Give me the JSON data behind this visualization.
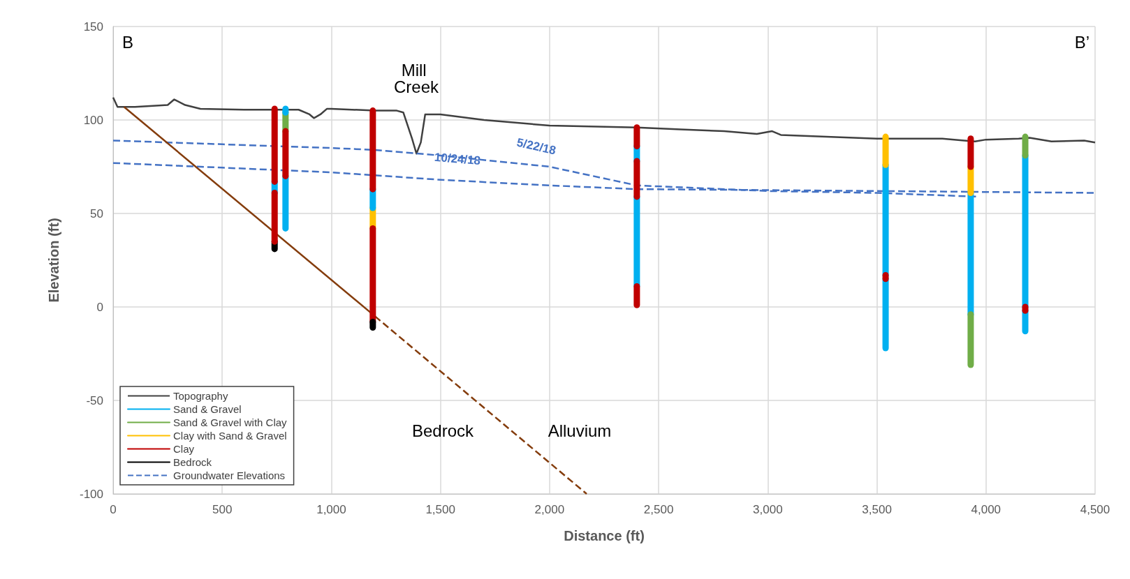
{
  "chart_data": {
    "type": "line",
    "xlabel": "Distance (ft)",
    "ylabel": "Elevation (ft)",
    "xlim": [
      0,
      4500
    ],
    "xticks": [
      0,
      500,
      {
        "value": 1000,
        "label": "1,000"
      },
      {
        "value": 1500,
        "label": "1,500"
      },
      {
        "value": 2000,
        "label": "2,000"
      },
      {
        "value": 2500,
        "label": "2,500"
      },
      {
        "value": 3000,
        "label": "3,000"
      },
      {
        "value": 3500,
        "label": "3,500"
      },
      {
        "value": 4000,
        "label": "4,000"
      },
      {
        "value": 4500,
        "label": "4,500"
      }
    ],
    "ylim": [
      -100,
      150
    ],
    "yticks": [
      -100,
      -50,
      0,
      50,
      100,
      150
    ],
    "grid": true,
    "legend": "bottom left",
    "marker": "none",
    "annotations": [
      "B",
      "B’",
      "Mill Creek",
      "5/22/18",
      "10/24/18",
      "Bedrock",
      "Alluvium"
    ],
    "series": [
      {
        "name": "Topography",
        "color": "#404040",
        "line_style": "solid",
        "x": [
          0,
          20,
          100,
          250,
          280,
          330,
          400,
          600,
          850,
          900,
          920,
          950,
          980,
          1000,
          1200,
          1300,
          1330,
          1370,
          1390,
          1410,
          1430,
          1500,
          1700,
          2000,
          2400,
          2600,
          2800,
          2950,
          3020,
          3060,
          3500,
          3800,
          3900,
          3950,
          4000,
          4150,
          4200,
          4300,
          4450,
          4500
        ],
        "values": [
          112,
          107,
          107,
          108,
          111,
          108,
          106,
          105.5,
          105.5,
          103,
          101,
          103,
          106,
          106,
          105,
          105,
          104,
          90,
          82,
          88,
          103,
          103,
          100,
          97,
          96,
          95,
          94,
          92.5,
          94,
          92,
          90,
          90,
          89,
          88.5,
          89.5,
          90,
          90.5,
          88.5,
          89,
          88
        ]
      },
      {
        "name": "Sand & Gravel",
        "color": "#00b0f0",
        "line_style": "solid",
        "x": [
          740,
          740
        ],
        "values": [
          67,
          61
        ]
      },
      {
        "name": "Sand & Gravel with Clay",
        "color": "#70ad47",
        "line_style": "solid",
        "x": [
          790,
          790
        ],
        "values": [
          104,
          94
        ]
      },
      {
        "name": "Clay with Sand & Gravel",
        "color": "#ffc000",
        "line_style": "solid",
        "x": [
          1190,
          1190
        ],
        "values": [
          53,
          42
        ]
      },
      {
        "name": "Clay",
        "color": "#c00000",
        "line_style": "solid",
        "x": [
          740,
          740
        ],
        "values": [
          106,
          67
        ]
      },
      {
        "name": "Bedrock",
        "color": "#000000",
        "line_style": "solid",
        "x": [
          740,
          740
        ],
        "values": [
          35,
          31
        ]
      },
      {
        "name": "Groundwater Elevations",
        "color": "#4472c4",
        "line_style": "dashed",
        "x": [
          0,
          500,
          1000,
          1200,
          1500,
          2000,
          2200,
          2400,
          3000,
          3500,
          3960
        ],
        "values": [
          89,
          87,
          85,
          84,
          81,
          75,
          70,
          65,
          62,
          61,
          59
        ]
      },
      {
        "color": "#4472c4",
        "line_style": "dashed",
        "x": [
          0,
          500,
          1000,
          1500,
          2000,
          2400,
          3000,
          3500,
          4000,
          4500
        ],
        "values": [
          77,
          74.5,
          72,
          68,
          65,
          63,
          62.5,
          62,
          61.5,
          61
        ]
      },
      {
        "color": "#843c0c",
        "line_style": "solid",
        "x": [
          50,
          1200
        ],
        "values": [
          107,
          -5
        ]
      },
      {
        "color": "#843c0c",
        "line_style": "dashed",
        "x": [
          1200,
          2170
        ],
        "values": [
          -5,
          -100
        ]
      },
      {
        "color": "#00b0f0",
        "line_style": "solid",
        "x": [
          790,
          790
        ],
        "values": [
          106,
          104
        ]
      },
      {
        "color": "#00b0f0",
        "line_style": "solid",
        "x": [
          790,
          790
        ],
        "values": [
          70,
          42
        ]
      },
      {
        "color": "#00b0f0",
        "line_style": "solid",
        "x": [
          1190,
          1190
        ],
        "values": [
          63,
          53
        ]
      },
      {
        "color": "#00b0f0",
        "line_style": "solid",
        "x": [
          2400,
          2400
        ],
        "values": [
          86,
          78
        ]
      },
      {
        "color": "#00b0f0",
        "line_style": "solid",
        "x": [
          2400,
          2400
        ],
        "values": [
          59,
          11
        ]
      },
      {
        "color": "#00b0f0",
        "line_style": "solid",
        "x": [
          3540,
          3540
        ],
        "values": [
          76,
          17
        ]
      },
      {
        "color": "#00b0f0",
        "line_style": "solid",
        "x": [
          3540,
          3540
        ],
        "values": [
          15,
          -22
        ]
      },
      {
        "color": "#00b0f0",
        "line_style": "solid",
        "x": [
          3930,
          3930
        ],
        "values": [
          61,
          -4
        ]
      },
      {
        "color": "#00b0f0",
        "line_style": "solid",
        "x": [
          4180,
          4180
        ],
        "values": [
          81,
          0
        ]
      },
      {
        "color": "#00b0f0",
        "line_style": "solid",
        "x": [
          4180,
          4180
        ],
        "values": [
          -2,
          -13
        ]
      },
      {
        "color": "#70ad47",
        "line_style": "solid",
        "x": [
          3930,
          3930
        ],
        "values": [
          -4,
          -31
        ]
      },
      {
        "color": "#70ad47",
        "line_style": "solid",
        "x": [
          4180,
          4180
        ],
        "values": [
          91,
          81
        ]
      },
      {
        "color": "#ffc000",
        "line_style": "solid",
        "x": [
          3540,
          3540
        ],
        "values": [
          91,
          76
        ]
      },
      {
        "color": "#ffc000",
        "line_style": "solid",
        "x": [
          3930,
          3930
        ],
        "values": [
          75,
          61
        ]
      },
      {
        "color": "#c00000",
        "line_style": "solid",
        "x": [
          740,
          740
        ],
        "values": [
          61,
          35
        ]
      },
      {
        "color": "#c00000",
        "line_style": "solid",
        "x": [
          790,
          790
        ],
        "values": [
          94,
          70
        ]
      },
      {
        "color": "#c00000",
        "line_style": "solid",
        "x": [
          1190,
          1190
        ],
        "values": [
          105,
          63
        ]
      },
      {
        "color": "#c00000",
        "line_style": "solid",
        "x": [
          1190,
          1190
        ],
        "values": [
          42,
          -8
        ]
      },
      {
        "color": "#c00000",
        "line_style": "solid",
        "x": [
          2400,
          2400
        ],
        "values": [
          96,
          86
        ]
      },
      {
        "color": "#c00000",
        "line_style": "solid",
        "x": [
          2400,
          2400
        ],
        "values": [
          78,
          59
        ]
      },
      {
        "color": "#c00000",
        "line_style": "solid",
        "x": [
          2400,
          2400
        ],
        "values": [
          11,
          1
        ]
      },
      {
        "color": "#c00000",
        "line_style": "solid",
        "x": [
          3540,
          3540
        ],
        "values": [
          17,
          15
        ]
      },
      {
        "color": "#c00000",
        "line_style": "solid",
        "x": [
          3930,
          3930
        ],
        "values": [
          90,
          75
        ]
      },
      {
        "color": "#c00000",
        "line_style": "solid",
        "x": [
          4180,
          4180
        ],
        "values": [
          0,
          -2
        ]
      },
      {
        "color": "#000000",
        "line_style": "solid",
        "x": [
          1190,
          1190
        ],
        "values": [
          -8,
          -11
        ]
      }
    ]
  }
}
